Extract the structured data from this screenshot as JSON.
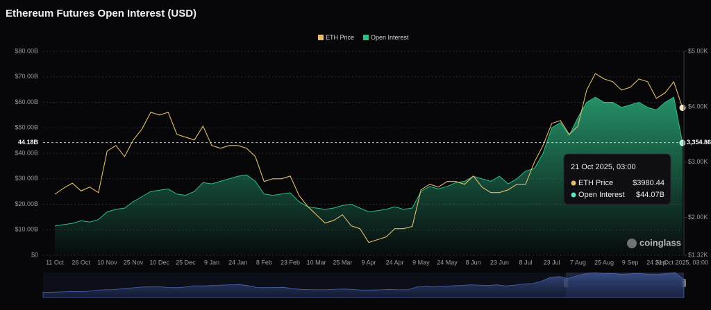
{
  "chart_data": {
    "type": "area-line",
    "title": "Ethereum Futures Open Interest (USD)",
    "watermark": "coinglass",
    "categories": [
      "11 Oct",
      null,
      null,
      "26 Oct",
      null,
      null,
      "10 Nov",
      null,
      null,
      "25 Nov",
      null,
      null,
      "10 Dec",
      null,
      null,
      "25 Dec",
      null,
      null,
      "9 Jan",
      null,
      null,
      "24 Jan",
      null,
      null,
      "8 Feb",
      null,
      null,
      "23 Feb",
      null,
      null,
      "10 Mar",
      null,
      null,
      "25 Mar",
      null,
      null,
      "9 Apr",
      null,
      null,
      "24 Apr",
      null,
      null,
      "9 May",
      null,
      null,
      "24 May",
      null,
      null,
      "8 Jun",
      null,
      null,
      "23 Jun",
      null,
      null,
      "8 Jul",
      null,
      null,
      "23 Jul",
      null,
      null,
      "7 Aug",
      null,
      null,
      "25 Aug",
      null,
      null,
      "9 Sep",
      null,
      null,
      "24 Sep",
      null,
      null,
      "21 Oct 2025, 03:00"
    ],
    "series": [
      {
        "name": "ETH Price",
        "color": "#e3bd6c",
        "axis": "y2",
        "values": [
          2420,
          2530,
          2620,
          2480,
          2550,
          2450,
          3200,
          3300,
          3100,
          3400,
          3600,
          3900,
          3850,
          3900,
          3500,
          3450,
          3400,
          3650,
          3300,
          3250,
          3300,
          3300,
          3250,
          3100,
          2650,
          2700,
          2700,
          2750,
          2400,
          2200,
          2050,
          1900,
          1950,
          2050,
          1850,
          1800,
          1550,
          1600,
          1650,
          1800,
          1800,
          1840,
          2500,
          2600,
          2550,
          2650,
          2650,
          2600,
          2750,
          2550,
          2450,
          2450,
          2500,
          2600,
          2600,
          3000,
          3300,
          3700,
          3750,
          3500,
          3650,
          4300,
          4600,
          4500,
          4450,
          4300,
          4350,
          4500,
          4450,
          4150,
          4250,
          4450,
          3980.44
        ]
      },
      {
        "name": "Open Interest",
        "color": "#2ebd85",
        "values": [
          11.5,
          12,
          12.5,
          13.5,
          13,
          14,
          17,
          18,
          18.5,
          21,
          23,
          25,
          25.5,
          26,
          24,
          23.5,
          25,
          28.5,
          28,
          29,
          30,
          31,
          31.5,
          29,
          24,
          23.5,
          24,
          24.5,
          21,
          19,
          18.5,
          18,
          18.5,
          19.5,
          20,
          18.5,
          17,
          17.5,
          18,
          19,
          18,
          18.5,
          25,
          27,
          26,
          27,
          28.5,
          29,
          31,
          30,
          29,
          31,
          28,
          30,
          33,
          34,
          40,
          50,
          52,
          47,
          54,
          60,
          62,
          60,
          60,
          58,
          59,
          60,
          58,
          57,
          60,
          62,
          44.07
        ]
      }
    ],
    "ylim": [
      0,
      80
    ],
    "yticks": [
      {
        "value": 0,
        "label": "$0"
      },
      {
        "value": 10,
        "label": "$10.00B"
      },
      {
        "value": 20,
        "label": "$20.00B"
      },
      {
        "value": 30,
        "label": "$30.00B"
      },
      {
        "value": 40,
        "label": "$40.00B"
      },
      {
        "value": 50,
        "label": "$50.00B"
      },
      {
        "value": 60,
        "label": "$60.00B"
      },
      {
        "value": 70,
        "label": "$70.00B"
      },
      {
        "value": 80,
        "label": "$80.00B"
      }
    ],
    "y2lim": [
      1320,
      5000
    ],
    "y2ticks": [
      {
        "value": 1320,
        "label": "$1.32K"
      },
      {
        "value": 2000,
        "label": "$2.00K"
      },
      {
        "value": 3000,
        "label": "$3.00K"
      },
      {
        "value": 4000,
        "label": "$4.00K"
      },
      {
        "value": 5000,
        "label": "$5.00K"
      }
    ],
    "grid": true,
    "crosshair": {
      "left": {
        "value": 44.18,
        "label": "44.18B"
      },
      "right": {
        "value": 3354.86,
        "label": "3,354.86"
      }
    },
    "tooltip": {
      "date": "21 Oct 2025, 03:00",
      "price_name": "ETH Price",
      "price": {
        "value": 3980.44,
        "label": "$3980.44"
      },
      "oi_name": "Open Interest",
      "oi": {
        "value": 44.07,
        "label": "$44.07B"
      }
    }
  }
}
